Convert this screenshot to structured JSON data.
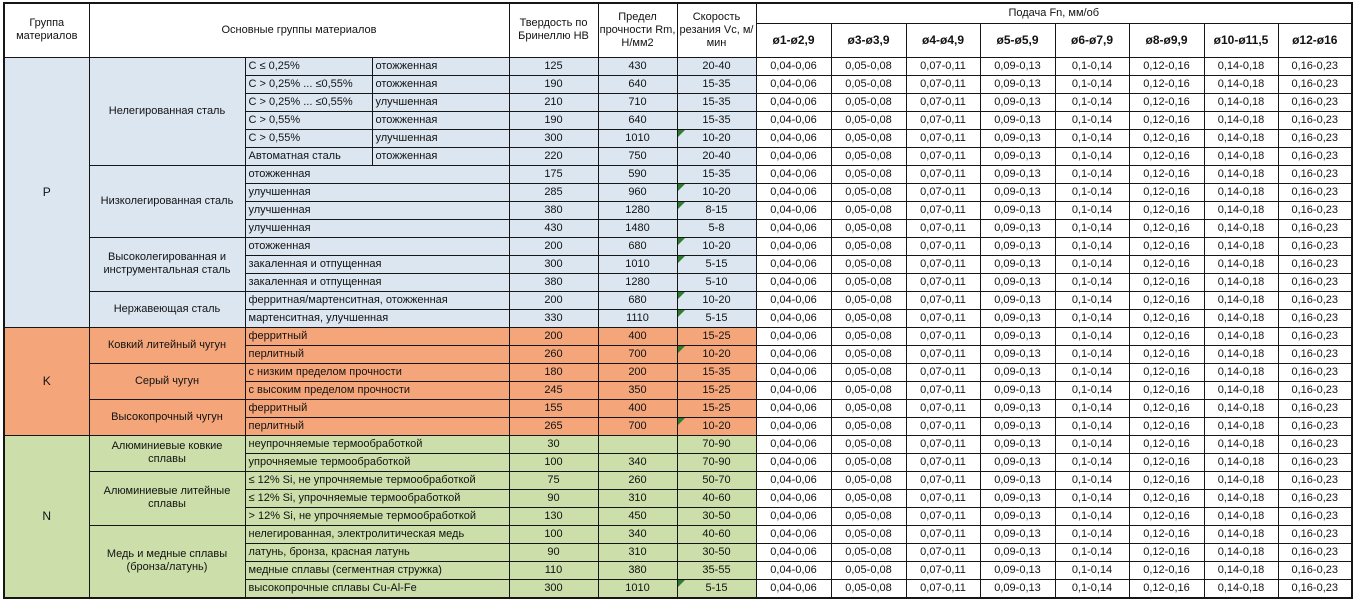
{
  "header": {
    "col_group": "Группа материалов",
    "col_main_groups": "Основные группы материалов",
    "col_hardness": "Твердость по Бринеллю HB",
    "col_strength": "Предел прочности Rm, Н/мм2",
    "col_speed": "Скорость резания Vc, м/мин",
    "col_feed": "Подача Fn, мм/об",
    "diameters": [
      "ø1-ø2,9",
      "ø3-ø3,9",
      "ø4-ø4,9",
      "ø5-ø5,9",
      "ø6-ø7,9",
      "ø8-ø9,9",
      "ø10-ø11,5",
      "ø12-ø16"
    ]
  },
  "feed_values": [
    "0,04-0,06",
    "0,05-0,08",
    "0,07-0,11",
    "0,09-0,13",
    "0,1-0,14",
    "0,12-0,16",
    "0,14-0,18",
    "0,16-0,23"
  ],
  "colors": {
    "group_p_bg": "#dce6f1",
    "group_k_bg": "#f4a67a",
    "group_n_bg": "#ccdea9",
    "marker_green": "#2e7d32",
    "border": "#161616",
    "header_bg": "#ffffff"
  },
  "groups": [
    {
      "code": "P",
      "color": "#dce6f1",
      "subgroups": [
        {
          "name": "Нелегированная сталь",
          "rows": [
            {
              "detail": "С ≤ 0,25%",
              "state": "отожженная",
              "hb": "125",
              "rm": "430",
              "vc": "20-40",
              "marker": false
            },
            {
              "detail": "С > 0,25% ... ≤0,55%",
              "state": "отожженная",
              "hb": "190",
              "rm": "640",
              "vc": "15-35",
              "marker": false
            },
            {
              "detail": "С > 0,25% ... ≤0,55%",
              "state": "улучшенная",
              "hb": "210",
              "rm": "710",
              "vc": "15-35",
              "marker": false
            },
            {
              "detail": "С > 0,55%",
              "state": "отожженная",
              "hb": "190",
              "rm": "640",
              "vc": "15-35",
              "marker": false
            },
            {
              "detail": "С > 0,55%",
              "state": "улучшенная",
              "hb": "300",
              "rm": "1010",
              "vc": "10-20",
              "marker": true
            },
            {
              "detail": "Автоматная сталь",
              "state": "отожженная",
              "hb": "220",
              "rm": "750",
              "vc": "20-40",
              "marker": false
            }
          ]
        },
        {
          "name": "Низколегированная сталь",
          "rows": [
            {
              "detail": "отожженная",
              "hb": "175",
              "rm": "590",
              "vc": "15-35",
              "marker": false
            },
            {
              "detail": "улучшенная",
              "hb": "285",
              "rm": "960",
              "vc": "10-20",
              "marker": true
            },
            {
              "detail": "улучшенная",
              "hb": "380",
              "rm": "1280",
              "vc": "8-15",
              "marker": true
            },
            {
              "detail": "улучшенная",
              "hb": "430",
              "rm": "1480",
              "vc": "5-8",
              "marker": false
            }
          ]
        },
        {
          "name": "Высоколегированная и инструментальная сталь",
          "rows": [
            {
              "detail": "отожженная",
              "hb": "200",
              "rm": "680",
              "vc": "10-20",
              "marker": true
            },
            {
              "detail": "закаленная и отпущенная",
              "hb": "300",
              "rm": "1010",
              "vc": "5-15",
              "marker": true
            },
            {
              "detail": "закаленная и отпущенная",
              "hb": "380",
              "rm": "1280",
              "vc": "5-10",
              "marker": false
            }
          ]
        },
        {
          "name": "Нержавеющая сталь",
          "rows": [
            {
              "detail": "ферритная/мартенситная, отожженная",
              "hb": "200",
              "rm": "680",
              "vc": "10-20",
              "marker": true
            },
            {
              "detail": "мартенситная, улучшенная",
              "hb": "330",
              "rm": "1110",
              "vc": "5-15",
              "marker": true
            }
          ]
        }
      ]
    },
    {
      "code": "K",
      "color": "#f4a67a",
      "subgroups": [
        {
          "name": "Ковкий литейный чугун",
          "rows": [
            {
              "detail": "ферритный",
              "hb": "200",
              "rm": "400",
              "vc": "15-25",
              "marker": false
            },
            {
              "detail": "перлитный",
              "hb": "260",
              "rm": "700",
              "vc": "10-20",
              "marker": true
            }
          ]
        },
        {
          "name": "Серый чугун",
          "rows": [
            {
              "detail": "с низким пределом прочности",
              "hb": "180",
              "rm": "200",
              "vc": "15-35",
              "marker": false
            },
            {
              "detail": "с высоким пределом прочности",
              "hb": "245",
              "rm": "350",
              "vc": "15-25",
              "marker": false
            }
          ]
        },
        {
          "name": "Высокопрочный чугун",
          "rows": [
            {
              "detail": "ферритный",
              "hb": "155",
              "rm": "400",
              "vc": "15-25",
              "marker": false
            },
            {
              "detail": "перлитный",
              "hb": "265",
              "rm": "700",
              "vc": "10-20",
              "marker": true
            }
          ]
        }
      ]
    },
    {
      "code": "N",
      "color": "#ccdea9",
      "subgroups": [
        {
          "name": "Алюминиевые ковкие сплавы",
          "rows": [
            {
              "detail": "неупрочняемые термообработкой",
              "hb": "30",
              "rm": "",
              "vc": "70-90",
              "marker": false
            },
            {
              "detail": "упрочняемые термообработкой",
              "hb": "100",
              "rm": "340",
              "vc": "70-90",
              "marker": false
            }
          ]
        },
        {
          "name": "Алюминиевые литейные сплавы",
          "rows": [
            {
              "detail": "≤ 12% Si, не упрочняемые термообработкой",
              "hb": "75",
              "rm": "260",
              "vc": "50-70",
              "marker": false
            },
            {
              "detail": "≤ 12% Si, упрочняемые термообработкой",
              "hb": "90",
              "rm": "310",
              "vc": "40-60",
              "marker": false
            },
            {
              "detail": "> 12% Si, не упрочняемые термообработкой",
              "hb": "130",
              "rm": "450",
              "vc": "30-50",
              "marker": false
            }
          ]
        },
        {
          "name": "Медь и медные сплавы (бронза/латунь)",
          "rows": [
            {
              "detail": "нелегированная, электролитическая медь",
              "hb": "100",
              "rm": "340",
              "vc": "40-60",
              "marker": false
            },
            {
              "detail": "латунь, бронза, красная латунь",
              "hb": "90",
              "rm": "310",
              "vc": "30-50",
              "marker": false
            },
            {
              "detail": "медные сплавы (сегментная стружка)",
              "hb": "110",
              "rm": "380",
              "vc": "35-55",
              "marker": false
            },
            {
              "detail": "высокопрочные сплавы Cu-Al-Fe",
              "hb": "300",
              "rm": "1010",
              "vc": "5-15",
              "marker": true
            }
          ]
        }
      ]
    }
  ]
}
